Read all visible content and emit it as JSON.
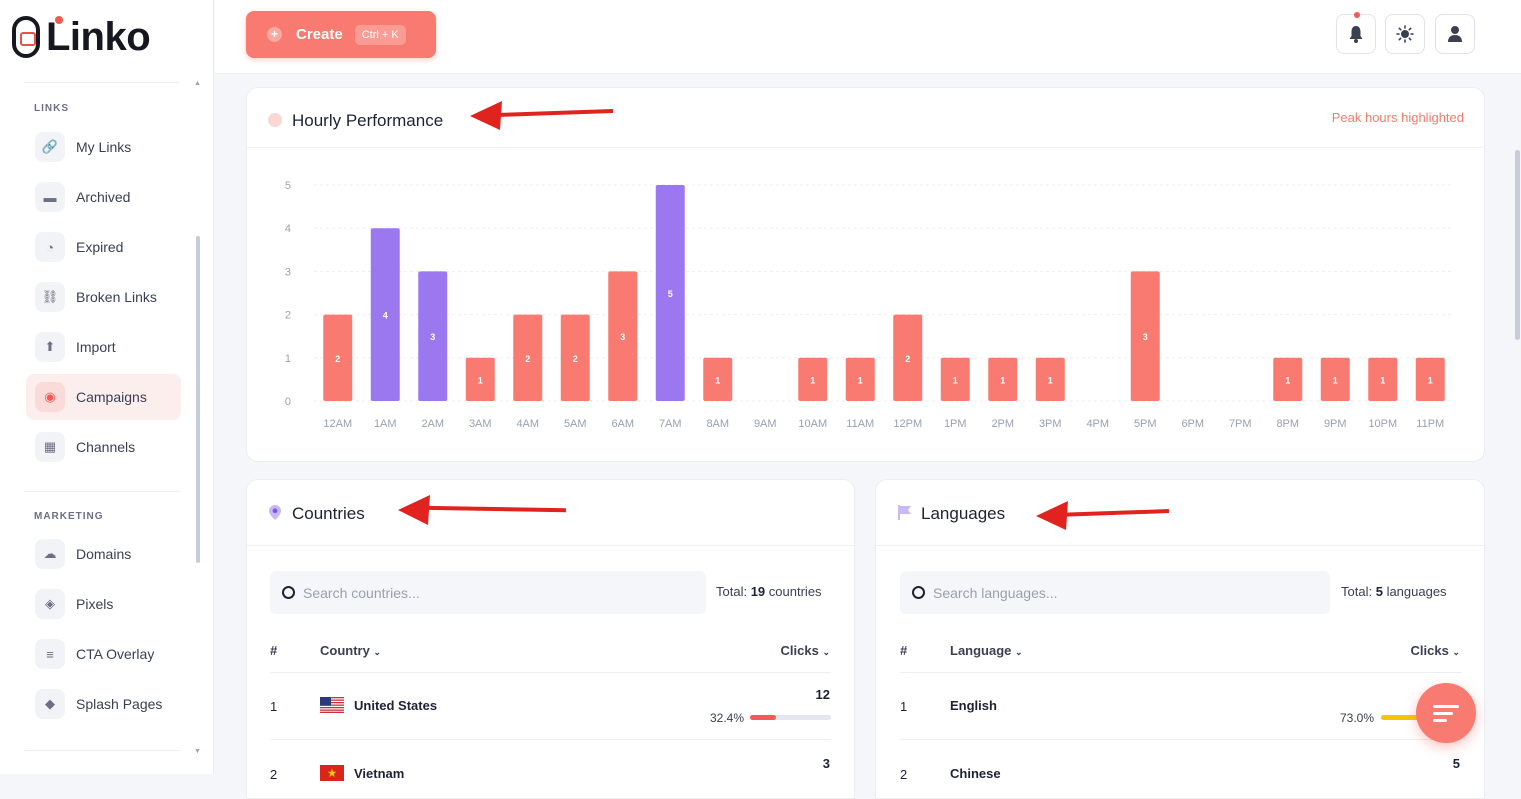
{
  "app": {
    "name": "Linko"
  },
  "sidebar": {
    "sections": [
      {
        "label": "LINKS",
        "items": [
          {
            "label": "My Links",
            "icon": "link-icon"
          },
          {
            "label": "Archived",
            "icon": "archive-icon"
          },
          {
            "label": "Expired",
            "icon": "clock-icon"
          },
          {
            "label": "Broken Links",
            "icon": "broken-link-icon"
          },
          {
            "label": "Import",
            "icon": "import-icon"
          },
          {
            "label": "Campaigns",
            "icon": "target-icon",
            "active": true
          },
          {
            "label": "Channels",
            "icon": "grid-icon"
          }
        ]
      },
      {
        "label": "MARKETING",
        "items": [
          {
            "label": "Domains",
            "icon": "cloud-icon"
          },
          {
            "label": "Pixels",
            "icon": "pixel-icon"
          },
          {
            "label": "CTA Overlay",
            "icon": "document-icon"
          },
          {
            "label": "Splash Pages",
            "icon": "layers-icon"
          }
        ]
      }
    ]
  },
  "header": {
    "create_label": "Create",
    "create_shortcut": "Ctrl + K"
  },
  "hourly": {
    "title": "Hourly Performance",
    "note": "Peak hours highlighted"
  },
  "chart_data": {
    "type": "bar",
    "categories": [
      "12AM",
      "1AM",
      "2AM",
      "3AM",
      "4AM",
      "5AM",
      "6AM",
      "7AM",
      "8AM",
      "9AM",
      "10AM",
      "11AM",
      "12PM",
      "1PM",
      "2PM",
      "3PM",
      "4PM",
      "5PM",
      "6PM",
      "7PM",
      "8PM",
      "9PM",
      "10PM",
      "11PM"
    ],
    "values": [
      2,
      4,
      3,
      1,
      2,
      2,
      3,
      5,
      1,
      0,
      1,
      1,
      2,
      1,
      1,
      1,
      0,
      3,
      0,
      0,
      1,
      1,
      1,
      1
    ],
    "peak": [
      false,
      true,
      true,
      false,
      false,
      false,
      false,
      true,
      false,
      false,
      false,
      false,
      false,
      false,
      false,
      false,
      false,
      false,
      false,
      false,
      false,
      false,
      false,
      false
    ],
    "ylim": [
      0,
      5
    ],
    "yticks": [
      0,
      1,
      2,
      3,
      4,
      5
    ],
    "colors": {
      "normal": "#f87a70",
      "peak": "#9b78f0"
    },
    "grid": true
  },
  "countries": {
    "title": "Countries",
    "search_placeholder": "Search countries...",
    "total_prefix": "Total:",
    "total_count": "19",
    "total_suffix": "countries",
    "col_num": "#",
    "col_name": "Country",
    "col_clicks": "Clicks",
    "rows": [
      {
        "rank": "1",
        "name": "United States",
        "clicks": "12",
        "pct": "32.4%",
        "fill": 0.324,
        "flag": "us"
      },
      {
        "rank": "2",
        "name": "Vietnam",
        "clicks": "3",
        "flag": "vn"
      }
    ]
  },
  "languages": {
    "title": "Languages",
    "search_placeholder": "Search languages...",
    "total_prefix": "Total:",
    "total_count": "5",
    "total_suffix": "languages",
    "col_num": "#",
    "col_name": "Language",
    "col_clicks": "Clicks",
    "rows": [
      {
        "rank": "1",
        "name": "English",
        "clicks": "",
        "pct": "73.0%",
        "fill": 0.73
      },
      {
        "rank": "2",
        "name": "Chinese",
        "clicks": "5"
      }
    ]
  }
}
